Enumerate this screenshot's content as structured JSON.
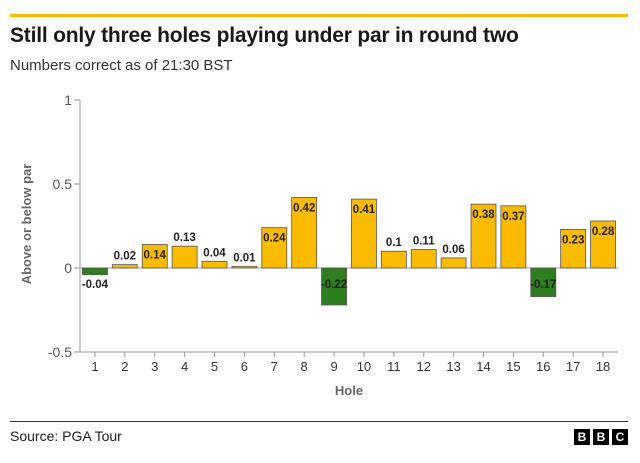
{
  "header": {
    "title": "Still only three holes playing under par in round two",
    "subtitle": "Numbers correct as of 21:30 BST"
  },
  "footer": {
    "source": "Source: PGA Tour",
    "logo_letters": [
      "B",
      "B",
      "C"
    ]
  },
  "colors": {
    "positive": "#fabb00",
    "negative": "#2e7d1e",
    "accent_rule": "#fabb00"
  },
  "chart_data": {
    "type": "bar",
    "xlabel": "Hole",
    "ylabel": "Above or below par",
    "ylim": [
      -0.5,
      1
    ],
    "yticks": [
      -0.5,
      0,
      0.5,
      1
    ],
    "yticklabels": [
      "-0.5",
      "0",
      "0.5",
      "1"
    ],
    "grid": false,
    "categories": [
      "1",
      "2",
      "3",
      "4",
      "5",
      "6",
      "7",
      "8",
      "9",
      "10",
      "11",
      "12",
      "13",
      "14",
      "15",
      "16",
      "17",
      "18"
    ],
    "values": [
      -0.04,
      0.02,
      0.14,
      0.13,
      0.04,
      0.01,
      0.24,
      0.42,
      -0.22,
      0.41,
      0.1,
      0.11,
      0.06,
      0.38,
      0.37,
      -0.17,
      0.23,
      0.28
    ],
    "labels": [
      "-0.04",
      "0.02",
      "0.14",
      "0.13",
      "0.04",
      "0.01",
      "0.24",
      "0.42",
      "-0.22",
      "0.41",
      "0.1",
      "0.11",
      "0.06",
      "0.38",
      "0.37",
      "-0.17",
      "0.23",
      "0.28"
    ]
  }
}
